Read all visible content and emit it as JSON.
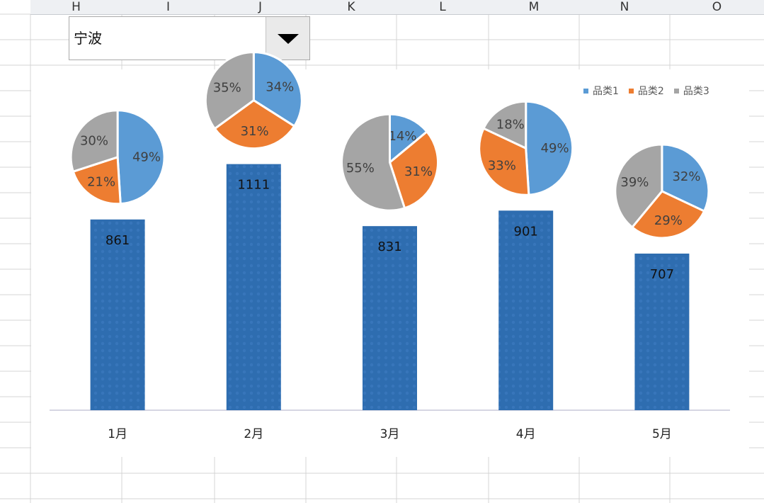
{
  "spreadsheet": {
    "columns": [
      "H",
      "I",
      "J",
      "K",
      "L",
      "M",
      "N",
      "O"
    ]
  },
  "dropdown": {
    "selected": "宁波"
  },
  "chart_data": {
    "type": "bar",
    "categories": [
      "1月",
      "2月",
      "3月",
      "4月",
      "5月"
    ],
    "values": [
      861,
      1111,
      831,
      901,
      707
    ],
    "value_labels": [
      "861",
      "1111",
      "831",
      "901",
      "707"
    ],
    "bar_color": "#2e6db0",
    "legend": {
      "placement": "top-right",
      "entries": [
        {
          "label": "品类1",
          "color": "#5b9bd5"
        },
        {
          "label": "品类2",
          "color": "#ed7d31"
        },
        {
          "label": "品类3",
          "color": "#a5a5a5"
        }
      ]
    },
    "pies": [
      {
        "category": "1月",
        "values": [
          49,
          21,
          30
        ],
        "labels": [
          "49%",
          "21%",
          "30%"
        ]
      },
      {
        "category": "2月",
        "values": [
          34,
          31,
          35
        ],
        "labels": [
          "34%",
          "31%",
          "35%"
        ]
      },
      {
        "category": "3月",
        "values": [
          14,
          31,
          55
        ],
        "labels": [
          "14%",
          "31%",
          "55%"
        ]
      },
      {
        "category": "4月",
        "values": [
          49,
          33,
          18
        ],
        "labels": [
          "49%",
          "33%",
          "18%"
        ]
      },
      {
        "category": "5月",
        "values": [
          32,
          29,
          39
        ],
        "labels": [
          "32%",
          "29%",
          "39%"
        ]
      }
    ]
  }
}
